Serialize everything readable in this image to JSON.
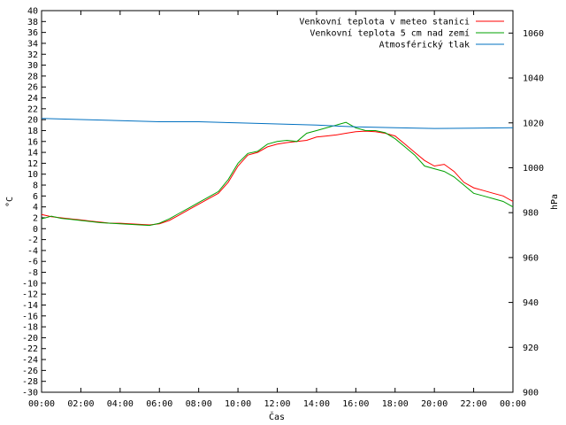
{
  "chart_data": {
    "type": "line",
    "xlabel": "Čas",
    "ylabel_left": "°C",
    "ylabel_right": "hPa",
    "x_range": [
      0,
      24
    ],
    "ylim_left": [
      -30,
      40
    ],
    "ylim_right": [
      900,
      1070
    ],
    "grid": false,
    "legend_position": "top-right",
    "x_tick_labels": [
      "00:00",
      "02:00",
      "04:00",
      "06:00",
      "08:00",
      "10:00",
      "12:00",
      "14:00",
      "16:00",
      "18:00",
      "20:00",
      "22:00",
      "00:00"
    ],
    "y_left_ticks": [
      40,
      38,
      36,
      34,
      32,
      30,
      28,
      26,
      24,
      22,
      20,
      18,
      16,
      14,
      12,
      10,
      8,
      6,
      4,
      2,
      0,
      -2,
      -4,
      -6,
      -8,
      -10,
      -12,
      -14,
      -16,
      -18,
      -20,
      -22,
      -24,
      -26,
      -28,
      -30
    ],
    "y_right_ticks": [
      1060,
      1040,
      1020,
      1000,
      980,
      960,
      940,
      920,
      900
    ],
    "series": [
      {
        "name": "Venkovní teplota v meteo stanici",
        "axis": "left",
        "color": "#ff0000",
        "x": [
          0,
          0.5,
          1,
          1.5,
          2,
          2.5,
          3,
          3.5,
          4,
          4.5,
          5,
          5.5,
          6,
          6.5,
          7,
          7.5,
          8,
          8.5,
          9,
          9.5,
          10,
          10.5,
          11,
          11.5,
          12,
          12.5,
          13,
          13.5,
          14,
          14.5,
          15,
          15.5,
          16,
          16.5,
          17,
          17.5,
          18,
          18.5,
          19,
          19.5,
          20,
          20.5,
          21,
          21.5,
          22,
          22.5,
          23,
          23.5,
          24
        ],
        "values": [
          2.6,
          2.2,
          2.0,
          1.8,
          1.6,
          1.4,
          1.2,
          1.0,
          1.0,
          0.9,
          0.8,
          0.7,
          0.9,
          1.5,
          2.5,
          3.5,
          4.5,
          5.5,
          6.5,
          8.5,
          11.5,
          13.5,
          14.0,
          15.0,
          15.5,
          15.8,
          16.0,
          16.2,
          16.8,
          17.0,
          17.2,
          17.5,
          17.8,
          17.9,
          17.8,
          17.5,
          17.0,
          15.5,
          14.0,
          12.5,
          11.5,
          11.8,
          10.5,
          8.5,
          7.5,
          7.0,
          6.5,
          6.0,
          5.0
        ]
      },
      {
        "name": "Venkovní teplota 5 cm nad zemí",
        "axis": "left",
        "color": "#00a000",
        "x": [
          0,
          0.5,
          1,
          1.5,
          2,
          2.5,
          3,
          3.5,
          4,
          4.5,
          5,
          5.5,
          6,
          6.5,
          7,
          7.5,
          8,
          8.5,
          9,
          9.5,
          10,
          10.5,
          11,
          11.5,
          12,
          12.5,
          13,
          13.5,
          14,
          14.5,
          15,
          15.5,
          16,
          16.5,
          17,
          17.5,
          18,
          18.5,
          19,
          19.5,
          20,
          20.5,
          21,
          21.5,
          22,
          22.5,
          23,
          23.5,
          24
        ],
        "values": [
          1.8,
          2.3,
          1.9,
          1.7,
          1.5,
          1.3,
          1.1,
          1.0,
          0.9,
          0.8,
          0.7,
          0.6,
          1.0,
          1.8,
          2.8,
          3.8,
          4.8,
          5.8,
          6.8,
          9.0,
          12.0,
          13.8,
          14.2,
          15.5,
          16.0,
          16.2,
          16.0,
          17.5,
          18.0,
          18.5,
          19.0,
          19.5,
          18.5,
          18.0,
          18.0,
          17.6,
          16.5,
          15.0,
          13.5,
          11.5,
          11.0,
          10.5,
          9.5,
          8.0,
          6.5,
          6.0,
          5.5,
          5.0,
          4.0
        ]
      },
      {
        "name": "Atmosférický tlak",
        "axis": "right",
        "color": "#0070c0",
        "x": [
          0,
          2,
          4,
          6,
          8,
          10,
          12,
          14,
          16,
          18,
          20,
          22,
          24
        ],
        "values": [
          1022.0,
          1021.5,
          1021.0,
          1020.5,
          1020.5,
          1020.0,
          1019.5,
          1019.0,
          1018.2,
          1017.8,
          1017.5,
          1017.6,
          1017.8
        ]
      }
    ]
  }
}
